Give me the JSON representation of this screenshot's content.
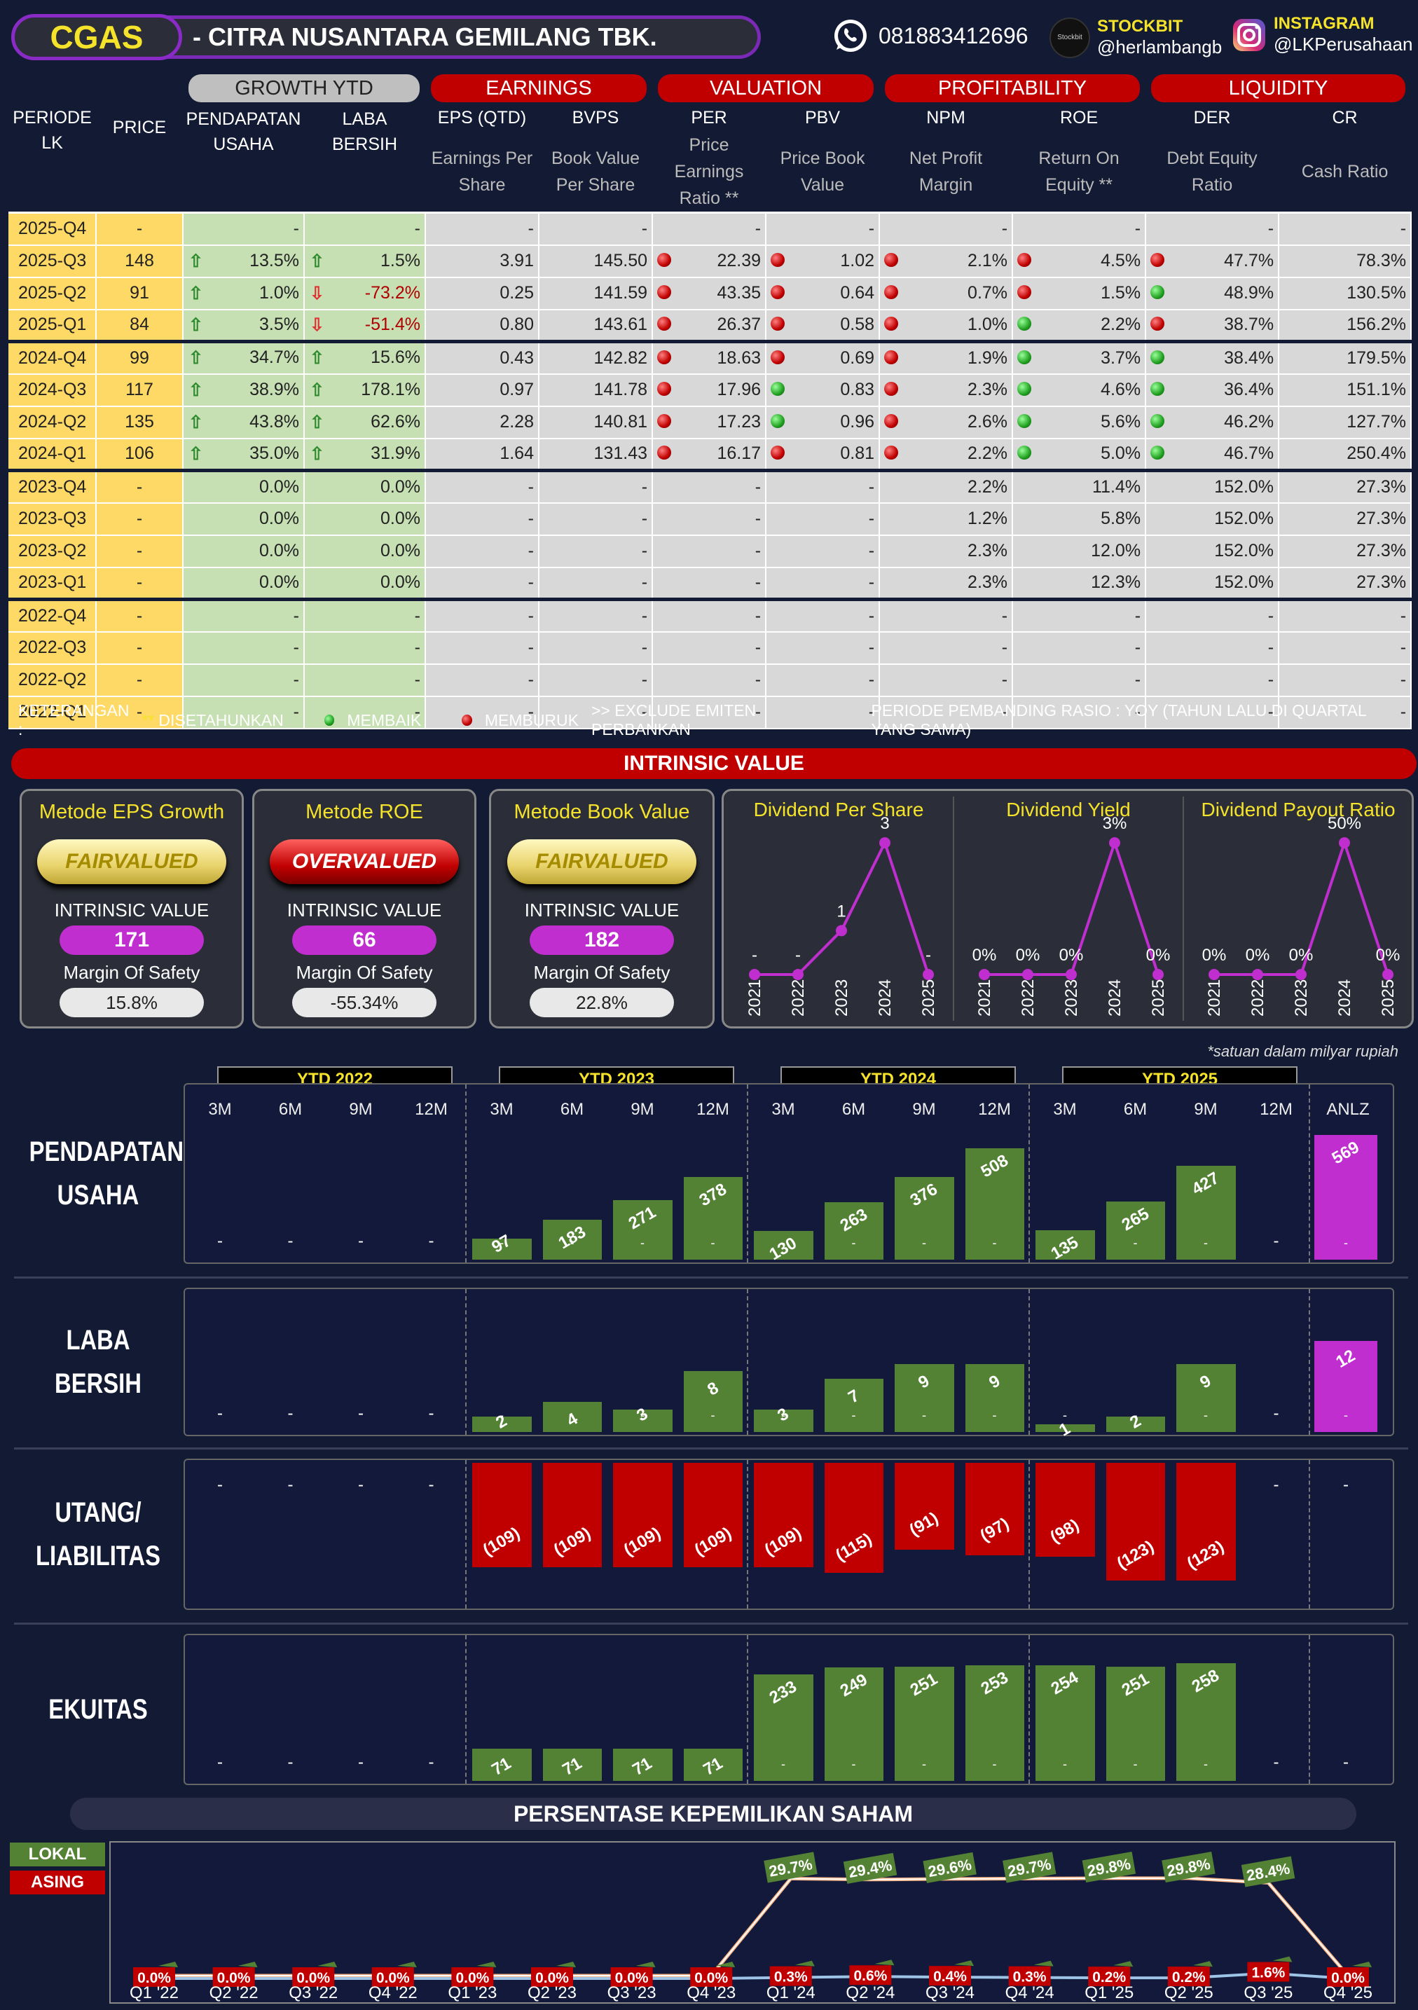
{
  "header": {
    "ticker": "CGAS",
    "company": "-  CITRA NUSANTARA GEMILANG TBK.",
    "phone": "081883412696",
    "stockbit_label": "STOCKBIT",
    "stockbit_handle": "@herlambangb",
    "instagram_label": "INSTAGRAM",
    "instagram_handle": "@LKPerusahaan",
    "stockbit_logo_text": "Stockbit"
  },
  "table": {
    "groups": {
      "growth": "GROWTH YTD",
      "earnings": "EARNINGS",
      "valuation": "VALUATION",
      "profitability": "PROFITABILITY",
      "liquidity": "LIQUIDITY"
    },
    "cols": {
      "periode": "PERIODE",
      "lk": "LK",
      "price": "PRICE",
      "pend1": "PENDAPATAN",
      "pend2": "USAHA",
      "laba1": "LABA",
      "laba2": "BERSIH",
      "eps": "EPS (QTD)",
      "bvps": "BVPS",
      "per": "PER",
      "pbv": "PBV",
      "npm": "NPM",
      "roe": "ROE",
      "der": "DER",
      "cr": "CR"
    },
    "subcols": {
      "eps": [
        "Earnings Per",
        "Share"
      ],
      "bvps": [
        "Book Value",
        "Per Share"
      ],
      "per": [
        "Price Earnings",
        "Ratio **"
      ],
      "pbv": [
        "Price Book",
        "Value"
      ],
      "npm": [
        "Net Profit",
        "Margin"
      ],
      "roe": [
        "Return On",
        "Equity **"
      ],
      "der": [
        "Debt Equity",
        "Ratio"
      ],
      "cr": [
        "Cash Ratio",
        ""
      ]
    },
    "rows": [
      {
        "p": "2025-Q4",
        "price": "-",
        "pu": "-",
        "lb": "-",
        "eps": "-",
        "bvps": "-",
        "per": "-",
        "pbv": "-",
        "npm": "-",
        "roe": "-",
        "der": "-",
        "cr": "-"
      },
      {
        "p": "2025-Q3",
        "price": "148",
        "pu": "13.5%",
        "pua": "up",
        "lb": "1.5%",
        "lba": "up",
        "eps": "3.91",
        "bvps": "145.50",
        "per": "22.39",
        "perd": "r",
        "pbv": "1.02",
        "pbvd": "r",
        "npm": "2.1%",
        "npmd": "r",
        "roe": "4.5%",
        "roed": "r",
        "der": "47.7%",
        "derd": "r",
        "cr": "78.3%"
      },
      {
        "p": "2025-Q2",
        "price": "91",
        "pu": "1.0%",
        "pua": "up",
        "lb": "-73.2%",
        "lba": "dn",
        "eps": "0.25",
        "bvps": "141.59",
        "per": "43.35",
        "perd": "r",
        "pbv": "0.64",
        "pbvd": "r",
        "npm": "0.7%",
        "npmd": "r",
        "roe": "1.5%",
        "roed": "r",
        "der": "48.9%",
        "derd": "gn",
        "cr": "130.5%"
      },
      {
        "p": "2025-Q1",
        "price": "84",
        "pu": "3.5%",
        "pua": "up",
        "lb": "-51.4%",
        "lba": "dn",
        "eps": "0.80",
        "bvps": "143.61",
        "per": "26.37",
        "perd": "r",
        "pbv": "0.58",
        "pbvd": "r",
        "npm": "1.0%",
        "npmd": "r",
        "roe": "2.2%",
        "roed": "gn",
        "der": "38.7%",
        "derd": "r",
        "cr": "156.2%",
        "sep": true
      },
      {
        "p": "2024-Q4",
        "price": "99",
        "pu": "34.7%",
        "pua": "up",
        "lb": "15.6%",
        "lba": "up",
        "eps": "0.43",
        "bvps": "142.82",
        "per": "18.63",
        "perd": "r",
        "pbv": "0.69",
        "pbvd": "r",
        "npm": "1.9%",
        "npmd": "r",
        "roe": "3.7%",
        "roed": "gn",
        "der": "38.4%",
        "derd": "gn",
        "cr": "179.5%"
      },
      {
        "p": "2024-Q3",
        "price": "117",
        "pu": "38.9%",
        "pua": "up",
        "lb": "178.1%",
        "lba": "up",
        "eps": "0.97",
        "bvps": "141.78",
        "per": "17.96",
        "perd": "r",
        "pbv": "0.83",
        "pbvd": "gn",
        "npm": "2.3%",
        "npmd": "r",
        "roe": "4.6%",
        "roed": "gn",
        "der": "36.4%",
        "derd": "gn",
        "cr": "151.1%"
      },
      {
        "p": "2024-Q2",
        "price": "135",
        "pu": "43.8%",
        "pua": "up",
        "lb": "62.6%",
        "lba": "up",
        "eps": "2.28",
        "bvps": "140.81",
        "per": "17.23",
        "perd": "r",
        "pbv": "0.96",
        "pbvd": "gn",
        "npm": "2.6%",
        "npmd": "r",
        "roe": "5.6%",
        "roed": "gn",
        "der": "46.2%",
        "derd": "gn",
        "cr": "127.7%"
      },
      {
        "p": "2024-Q1",
        "price": "106",
        "pu": "35.0%",
        "pua": "up",
        "lb": "31.9%",
        "lba": "up",
        "eps": "1.64",
        "bvps": "131.43",
        "per": "16.17",
        "perd": "r",
        "pbv": "0.81",
        "pbvd": "r",
        "npm": "2.2%",
        "npmd": "r",
        "roe": "5.0%",
        "roed": "gn",
        "der": "46.7%",
        "derd": "gn",
        "cr": "250.4%",
        "sep": true
      },
      {
        "p": "2023-Q4",
        "price": "-",
        "pu": "0.0%",
        "lb": "0.0%",
        "eps": "-",
        "bvps": "-",
        "per": "-",
        "pbv": "-",
        "npm": "2.2%",
        "roe": "11.4%",
        "der": "152.0%",
        "cr": "27.3%"
      },
      {
        "p": "2023-Q3",
        "price": "-",
        "pu": "0.0%",
        "lb": "0.0%",
        "eps": "-",
        "bvps": "-",
        "per": "-",
        "pbv": "-",
        "npm": "1.2%",
        "roe": "5.8%",
        "der": "152.0%",
        "cr": "27.3%"
      },
      {
        "p": "2023-Q2",
        "price": "-",
        "pu": "0.0%",
        "lb": "0.0%",
        "eps": "-",
        "bvps": "-",
        "per": "-",
        "pbv": "-",
        "npm": "2.3%",
        "roe": "12.0%",
        "der": "152.0%",
        "cr": "27.3%"
      },
      {
        "p": "2023-Q1",
        "price": "-",
        "pu": "0.0%",
        "lb": "0.0%",
        "eps": "-",
        "bvps": "-",
        "per": "-",
        "pbv": "-",
        "npm": "2.3%",
        "roe": "12.3%",
        "der": "152.0%",
        "cr": "27.3%",
        "sep": true
      },
      {
        "p": "2022-Q4",
        "price": "-",
        "pu": "-",
        "lb": "-",
        "eps": "-",
        "bvps": "-",
        "per": "-",
        "pbv": "-",
        "npm": "-",
        "roe": "-",
        "der": "-",
        "cr": "-"
      },
      {
        "p": "2022-Q3",
        "price": "-",
        "pu": "-",
        "lb": "-",
        "eps": "-",
        "bvps": "-",
        "per": "-",
        "pbv": "-",
        "npm": "-",
        "roe": "-",
        "der": "-",
        "cr": "-"
      },
      {
        "p": "2022-Q2",
        "price": "-",
        "pu": "-",
        "lb": "-",
        "eps": "-",
        "bvps": "-",
        "per": "-",
        "pbv": "-",
        "npm": "-",
        "roe": "-",
        "der": "-",
        "cr": "-"
      },
      {
        "p": "2022-Q1",
        "price": "-",
        "pu": "-",
        "lb": "-",
        "eps": "-",
        "bvps": "-",
        "per": "-",
        "pbv": "-",
        "npm": "-",
        "roe": "-",
        "der": "-",
        "cr": "-"
      }
    ]
  },
  "keterangan": {
    "label": "KETERANGAN :",
    "star_mark": "**",
    "star": "DISETAHUNKAN",
    "good": "MEMBAIK",
    "bad": "MEMBURUK",
    "exclude": ">> EXCLUDE EMITEN PERBANKAN",
    "pembanding": "PERIODE PEMBANDING RASIO : YOY (TAHUN LALU DI QUARTAL YANG SAMA)"
  },
  "intrinsic": {
    "title": "INTRINSIC VALUE",
    "iv_label": "INTRINSIC VALUE",
    "mos_label": "Margin Of Safety",
    "methods": [
      {
        "name": "Metode EPS Growth",
        "status": "FAIRVALUED",
        "kind": "fv",
        "value": "171",
        "mos": "15.8%"
      },
      {
        "name": "Metode ROE",
        "status": "OVERVALUED",
        "kind": "ov",
        "value": "66",
        "mos": "-55.34%"
      },
      {
        "name": "Metode Book Value",
        "status": "FAIRVALUED",
        "kind": "fv",
        "value": "182",
        "mos": "22.8%"
      }
    ]
  },
  "dividend": {
    "years": [
      "2021",
      "2022",
      "2023",
      "2024",
      "2025"
    ],
    "panels": [
      {
        "title": "Dividend Per Share",
        "labels": [
          "-",
          "-",
          "1",
          "3",
          "-"
        ],
        "values": [
          0,
          0,
          1,
          3,
          0
        ]
      },
      {
        "title": "Dividend Yield",
        "labels": [
          "0%",
          "0%",
          "0%",
          "3%",
          "0%"
        ],
        "values": [
          0,
          0,
          0,
          3,
          0
        ]
      },
      {
        "title": "Dividend Payout Ratio",
        "labels": [
          "0%",
          "0%",
          "0%",
          "50%",
          "0%"
        ],
        "values": [
          0,
          0,
          0,
          50,
          0
        ]
      }
    ]
  },
  "fin": {
    "note": "*satuan dalam milyar rupiah",
    "ytd": [
      "YTD 2022",
      "YTD 2023",
      "YTD 2024",
      "YTD 2025"
    ],
    "months": [
      "3M",
      "6M",
      "9M",
      "12M"
    ],
    "anlz": "ANLZ",
    "series": [
      {
        "label1": "PENDAPATAN",
        "label2": "USAHA",
        "values": [
          null,
          null,
          null,
          null,
          97,
          183,
          271,
          378,
          130,
          263,
          376,
          508,
          135,
          265,
          427,
          null
        ],
        "labels": [
          "-",
          "-",
          "-",
          "-",
          "97",
          "183",
          "271",
          "378",
          "130",
          "263",
          "376",
          "508",
          "135",
          "265",
          "427",
          "-"
        ],
        "anlz": 569,
        "anlz_label": "569"
      },
      {
        "label1": "LABA",
        "label2": "BERSIH",
        "values": [
          null,
          null,
          null,
          null,
          2,
          4,
          3,
          8,
          3,
          7,
          9,
          9,
          1,
          2,
          9,
          null
        ],
        "labels": [
          "-",
          "-",
          "-",
          "-",
          "2",
          "4",
          "3",
          "8",
          "3",
          "7",
          "9",
          "9",
          "1",
          "2",
          "9",
          "-"
        ],
        "anlz": 12,
        "anlz_label": "12"
      },
      {
        "label1": "UTANG/",
        "label2": "LIABILITAS",
        "values": [
          null,
          null,
          null,
          null,
          -109,
          -109,
          -109,
          -109,
          -109,
          -115,
          -91,
          -97,
          -98,
          -123,
          -123,
          null
        ],
        "labels": [
          "-",
          "-",
          "-",
          "-",
          "(109)",
          "(109)",
          "(109)",
          "(109)",
          "(109)",
          "(115)",
          "(91)",
          "(97)",
          "(98)",
          "(123)",
          "(123)",
          "-"
        ],
        "anlz": null,
        "anlz_label": "-"
      },
      {
        "label1": "EKUITAS",
        "label2": "",
        "values": [
          null,
          null,
          null,
          null,
          71,
          71,
          71,
          71,
          233,
          249,
          251,
          253,
          254,
          251,
          258,
          null
        ],
        "labels": [
          "-",
          "-",
          "-",
          "-",
          "71",
          "71",
          "71",
          "71",
          "233",
          "249",
          "251",
          "253",
          "254",
          "251",
          "258",
          "-"
        ],
        "anlz": null,
        "anlz_label": "-"
      }
    ]
  },
  "ownership": {
    "title": "PERSENTASE KEPEMILIKAN SAHAM",
    "lokal": "LOKAL",
    "asing": "ASING",
    "quarters": [
      "Q1 '22",
      "Q2 '22",
      "Q3 '22",
      "Q4 '22",
      "Q1 '23",
      "Q2 '23",
      "Q3 '23",
      "Q4 '23",
      "Q1 '24",
      "Q2 '24",
      "Q3 '24",
      "Q4 '24",
      "Q1 '25",
      "Q2 '25",
      "Q3 '25",
      "Q4 '25"
    ],
    "lokal_values": [
      0,
      0,
      0,
      0,
      0,
      0,
      0,
      0,
      29.7,
      29.4,
      29.6,
      29.7,
      29.8,
      29.8,
      28.4,
      0
    ],
    "lokal_labels": [
      "",
      "",
      "",
      "",
      "",
      "",
      "",
      "",
      "29.7%",
      "29.4%",
      "29.6%",
      "29.7%",
      "29.8%",
      "29.8%",
      "28.4%",
      ""
    ],
    "asing_values": [
      0,
      0,
      0,
      0,
      0,
      0,
      0,
      0,
      0.3,
      0.6,
      0.4,
      0.3,
      0.2,
      0.2,
      1.6,
      0
    ],
    "asing_labels": [
      "0.0%",
      "0.0%",
      "0.0%",
      "0.0%",
      "0.0%",
      "0.0%",
      "0.0%",
      "0.0%",
      "0.3%",
      "0.6%",
      "0.4%",
      "0.3%",
      "0.2%",
      "0.2%",
      "1.6%",
      "0.0%"
    ]
  },
  "colors": {
    "accent": "#c00000",
    "green": "#548235",
    "magenta": "#c02ed0",
    "yellow": "#f5e22a"
  }
}
